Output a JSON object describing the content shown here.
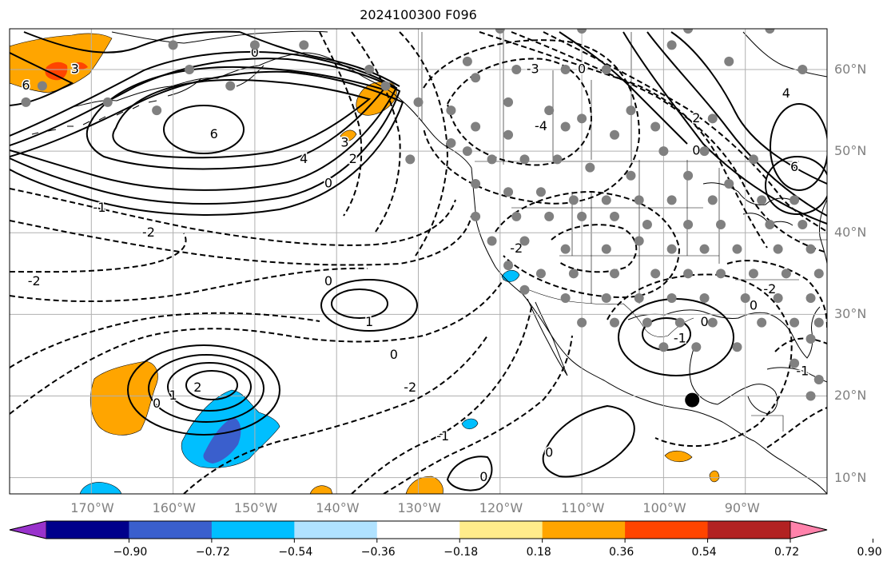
{
  "title": "2024100300 F096",
  "map": {
    "projection": "plate-carree",
    "lon_range": [
      -180,
      -80
    ],
    "lat_range": [
      8,
      65
    ],
    "grid": true,
    "lon_labels": [
      "170°W",
      "160°W",
      "150°W",
      "140°W",
      "130°W",
      "120°W",
      "110°W",
      "100°W",
      "90°W"
    ],
    "lon_values": [
      -170,
      -160,
      -150,
      -140,
      -130,
      -120,
      -110,
      -100,
      -90
    ],
    "lat_labels": [
      "60°N",
      "50°N",
      "40°N",
      "30°N",
      "20°N",
      "10°N"
    ],
    "lat_values": [
      60,
      50,
      40,
      30,
      20,
      10
    ],
    "contour_labels": [
      {
        "text": "6",
        "lon": -178,
        "lat": 58
      },
      {
        "text": "3",
        "lon": -172,
        "lat": 60
      },
      {
        "text": "6",
        "lon": -155,
        "lat": 52
      },
      {
        "text": "4",
        "lon": -144,
        "lat": 49
      },
      {
        "text": "3",
        "lon": -139,
        "lat": 51
      },
      {
        "text": "2",
        "lon": -138,
        "lat": 49
      },
      {
        "text": "0",
        "lon": -141,
        "lat": 46
      },
      {
        "text": "0",
        "lon": -150,
        "lat": 62
      },
      {
        "text": "-1",
        "lon": -169,
        "lat": 43
      },
      {
        "text": "-2",
        "lon": -163,
        "lat": 40
      },
      {
        "text": "-2",
        "lon": -177,
        "lat": 34
      },
      {
        "text": "0",
        "lon": -141,
        "lat": 34
      },
      {
        "text": "1",
        "lon": -136,
        "lat": 29
      },
      {
        "text": "0",
        "lon": -133,
        "lat": 25
      },
      {
        "text": "-2",
        "lon": -131,
        "lat": 21
      },
      {
        "text": "-1",
        "lon": -127,
        "lat": 15
      },
      {
        "text": "0",
        "lon": -122,
        "lat": 10
      },
      {
        "text": "0",
        "lon": -114,
        "lat": 13
      },
      {
        "text": "2",
        "lon": -157,
        "lat": 21
      },
      {
        "text": "1",
        "lon": -160,
        "lat": 20
      },
      {
        "text": "0",
        "lon": -162,
        "lat": 19
      },
      {
        "text": "-3",
        "lon": -116,
        "lat": 60
      },
      {
        "text": "-4",
        "lon": -115,
        "lat": 53
      },
      {
        "text": "0",
        "lon": -110,
        "lat": 60
      },
      {
        "text": "-2",
        "lon": -118,
        "lat": 38
      },
      {
        "text": "0",
        "lon": -95,
        "lat": 29
      },
      {
        "text": "-1",
        "lon": -98,
        "lat": 27
      },
      {
        "text": "-2",
        "lon": -87,
        "lat": 33
      },
      {
        "text": "0",
        "lon": -89,
        "lat": 31
      },
      {
        "text": "-1",
        "lon": -83,
        "lat": 23
      },
      {
        "text": "2",
        "lon": -96,
        "lat": 54
      },
      {
        "text": "0",
        "lon": -96,
        "lat": 50
      },
      {
        "text": "4",
        "lon": -85,
        "lat": 57
      },
      {
        "text": "6",
        "lon": -84,
        "lat": 48
      }
    ],
    "observation_stations": [
      [
        -124,
        61
      ],
      [
        -118,
        60
      ],
      [
        -112,
        60
      ],
      [
        -107,
        60
      ],
      [
        -99,
        63
      ],
      [
        -92,
        61
      ],
      [
        -83,
        60
      ],
      [
        -119,
        56
      ],
      [
        -114,
        55
      ],
      [
        -110,
        54
      ],
      [
        -104,
        55
      ],
      [
        -101,
        53
      ],
      [
        -94,
        54
      ],
      [
        -123,
        53
      ],
      [
        -119,
        52
      ],
      [
        -112,
        53
      ],
      [
        -106,
        52
      ],
      [
        -100,
        50
      ],
      [
        -95,
        50
      ],
      [
        -89,
        49
      ],
      [
        -124,
        50
      ],
      [
        -121,
        49
      ],
      [
        -117,
        49
      ],
      [
        -113,
        49
      ],
      [
        -109,
        48
      ],
      [
        -104,
        47
      ],
      [
        -97,
        47
      ],
      [
        -92,
        46
      ],
      [
        -123,
        46
      ],
      [
        -119,
        45
      ],
      [
        -115,
        45
      ],
      [
        -111,
        44
      ],
      [
        -107,
        44
      ],
      [
        -103,
        44
      ],
      [
        -99,
        44
      ],
      [
        -94,
        44
      ],
      [
        -88,
        44
      ],
      [
        -84,
        44
      ],
      [
        -123,
        42
      ],
      [
        -118,
        42
      ],
      [
        -114,
        42
      ],
      [
        -110,
        42
      ],
      [
        -106,
        42
      ],
      [
        -102,
        41
      ],
      [
        -97,
        41
      ],
      [
        -93,
        41
      ],
      [
        -87,
        41
      ],
      [
        -83,
        41
      ],
      [
        -121,
        39
      ],
      [
        -117,
        39
      ],
      [
        -112,
        38
      ],
      [
        -107,
        38
      ],
      [
        -103,
        39
      ],
      [
        -99,
        38
      ],
      [
        -95,
        38
      ],
      [
        -91,
        38
      ],
      [
        -86,
        38
      ],
      [
        -82,
        38
      ],
      [
        -119,
        36
      ],
      [
        -115,
        35
      ],
      [
        -111,
        35
      ],
      [
        -106,
        35
      ],
      [
        -101,
        35
      ],
      [
        -97,
        35
      ],
      [
        -93,
        35
      ],
      [
        -89,
        35
      ],
      [
        -85,
        35
      ],
      [
        -81,
        35
      ],
      [
        -117,
        33
      ],
      [
        -112,
        32
      ],
      [
        -107,
        32
      ],
      [
        -103,
        32
      ],
      [
        -99,
        32
      ],
      [
        -95,
        32
      ],
      [
        -90,
        32
      ],
      [
        -86,
        32
      ],
      [
        -82,
        32
      ],
      [
        -110,
        29
      ],
      [
        -106,
        29
      ],
      [
        -102,
        29
      ],
      [
        -98,
        29
      ],
      [
        -94,
        29
      ],
      [
        -88,
        29
      ],
      [
        -84,
        29
      ],
      [
        -81,
        29
      ],
      [
        -100,
        26
      ],
      [
        -96,
        26
      ],
      [
        -91,
        26
      ],
      [
        -82,
        27
      ],
      [
        -84,
        24
      ],
      [
        -81,
        22
      ],
      [
        -82,
        20
      ],
      [
        -160,
        63
      ],
      [
        -150,
        63
      ],
      [
        -144,
        63
      ],
      [
        -136,
        60
      ],
      [
        -176,
        58
      ],
      [
        -158,
        60
      ],
      [
        -153,
        58
      ],
      [
        -178,
        56
      ],
      [
        -168,
        56
      ],
      [
        -162,
        55
      ],
      [
        -134,
        58
      ],
      [
        -130,
        56
      ],
      [
        -126,
        55
      ],
      [
        -120,
        65
      ],
      [
        -110,
        65
      ],
      [
        -97,
        65
      ],
      [
        -87,
        65
      ],
      [
        -123,
        59
      ],
      [
        -131,
        49
      ],
      [
        -126,
        51
      ]
    ],
    "highlight_point": {
      "lon": -96.5,
      "lat": 19.5
    }
  },
  "colorbar": {
    "ticks": [
      "−0.90",
      "−0.72",
      "−0.54",
      "−0.36",
      "−0.18",
      "0.18",
      "0.36",
      "0.54",
      "0.72",
      "0.90"
    ],
    "colors": [
      "#9932cc",
      "#00008b",
      "#3a5fcd",
      "#00bfff",
      "#b0e2ff",
      "#ffffff",
      "#ffec8b",
      "#ffa500",
      "#ff4500",
      "#b22222",
      "#ff82ab"
    ]
  }
}
